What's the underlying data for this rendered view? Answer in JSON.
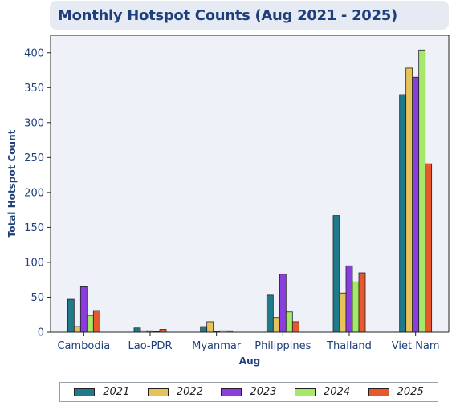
{
  "title": "Monthly Hotspot Counts (Aug 2021 - 2025)",
  "chart_data": {
    "type": "bar",
    "title": "Monthly Hotspot Counts (Aug 2021 - 2025)",
    "xlabel": "Aug",
    "ylabel": "Total Hotspot Count",
    "categories": [
      "Cambodia",
      "Lao-PDR",
      "Myanmar",
      "Philippines",
      "Thailand",
      "Viet Nam"
    ],
    "ylim": [
      0,
      425
    ],
    "yticks": [
      0,
      50,
      100,
      150,
      200,
      250,
      300,
      350,
      400
    ],
    "grid": false,
    "legend_position": "bottom",
    "series": [
      {
        "name": "2021",
        "color": "#1f7a8c",
        "values": [
          47,
          6,
          8,
          53,
          167,
          340
        ]
      },
      {
        "name": "2022",
        "color": "#e8c35a",
        "values": [
          8,
          2,
          15,
          21,
          56,
          378
        ]
      },
      {
        "name": "2023",
        "color": "#8a3ee0",
        "values": [
          65,
          2,
          1,
          83,
          95,
          365
        ]
      },
      {
        "name": "2024",
        "color": "#a6e86a",
        "values": [
          24,
          1,
          2,
          29,
          72,
          404
        ]
      },
      {
        "name": "2025",
        "color": "#e8582e",
        "values": [
          31,
          4,
          2,
          15,
          85,
          241
        ]
      }
    ]
  }
}
